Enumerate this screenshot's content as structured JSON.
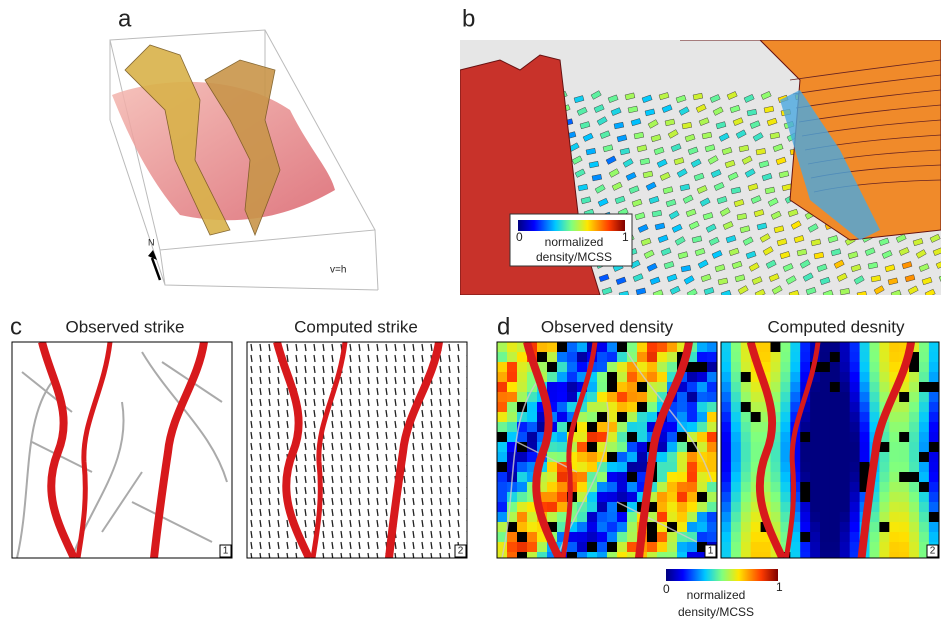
{
  "panels": {
    "a": {
      "label": "a",
      "north": "N",
      "scale": "v=h"
    },
    "b": {
      "label": "b",
      "colorbar": {
        "min": 0,
        "max": 1,
        "title_line1": "normalized",
        "title_line2": "density/MCSS"
      }
    },
    "c": {
      "label": "c",
      "maps": [
        {
          "title": "Observed strike",
          "number": 1
        },
        {
          "title": "Computed strike",
          "number": 2
        }
      ]
    },
    "d": {
      "label": "d",
      "maps": [
        {
          "title": "Observed density",
          "number": 1
        },
        {
          "title": "Computed desnity",
          "number": 2
        }
      ],
      "colorbar": {
        "min": 0,
        "max": 1,
        "title_line1": "normalized",
        "title_line2": "density/MCSS"
      }
    }
  }
}
